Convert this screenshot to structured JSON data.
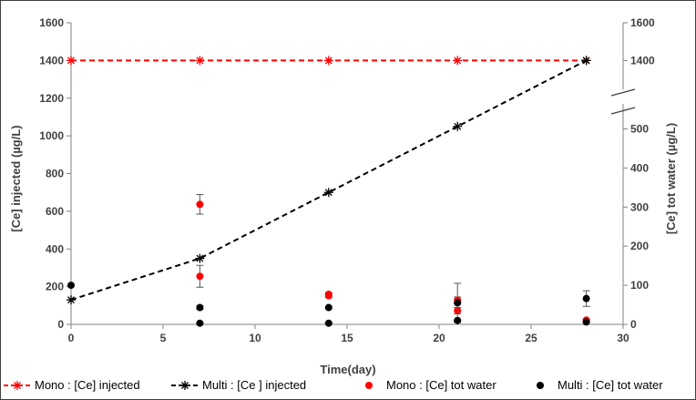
{
  "colors": {
    "mono": "#ff0000",
    "multi": "#000000",
    "axis": "#808080",
    "text": "#404040",
    "frame": "#404040"
  },
  "chart_data": {
    "type": "scatter",
    "xlabel": "Time(day)",
    "ylabel_left": "[Ce]  injected (µg/L)",
    "ylabel_right": "[Ce] tot water (µg/L)",
    "xlim": [
      0,
      30
    ],
    "x_ticks": [
      "0",
      "5",
      "10",
      "15",
      "20",
      "25",
      "30"
    ],
    "ylim_left": [
      0,
      1600
    ],
    "y_ticks_left": [
      "0",
      "200",
      "400",
      "600",
      "800",
      "1000",
      "1200",
      "1400",
      "1600"
    ],
    "ylim_right": [
      0,
      550
    ],
    "y_ticks_right": [
      "0",
      "100",
      "200",
      "300",
      "400",
      "500"
    ],
    "y_ticks_right_upper": [
      "1400",
      "1600"
    ],
    "right_axis_break": true,
    "grid": false,
    "legend_position": "bottom",
    "series": [
      {
        "name": "Mono : [Ce] injected",
        "axis": "left",
        "style": "dashed-line-star",
        "color": "#ff0000",
        "x": [
          0,
          7,
          14,
          21,
          28
        ],
        "y": [
          1400,
          1400,
          1400,
          1400,
          1400
        ]
      },
      {
        "name": "Multi : [Ce ] injected",
        "axis": "left",
        "style": "dashed-line-star",
        "color": "#000000",
        "x": [
          0,
          7,
          14,
          21,
          28
        ],
        "y": [
          130,
          350,
          700,
          1050,
          1400
        ]
      },
      {
        "name": "Mono : [Ce] tot water",
        "axis": "right",
        "style": "dot",
        "color": "#ff0000",
        "x": [
          7,
          7,
          14,
          14,
          21,
          21,
          28
        ],
        "y": [
          307,
          123,
          77,
          73,
          35,
          62,
          11
        ],
        "err": [
          25,
          28,
          4,
          4,
          8,
          8,
          3
        ]
      },
      {
        "name": "Multi : [Ce] tot water",
        "axis": "right",
        "style": "dot",
        "color": "#000000",
        "x": [
          0,
          7,
          7,
          14,
          14,
          21,
          21,
          28,
          28
        ],
        "y": [
          100,
          43,
          3,
          43,
          3,
          55,
          10,
          66,
          6
        ],
        "err": [
          0,
          5,
          1,
          3,
          1,
          50,
          2,
          20,
          1
        ]
      }
    ]
  }
}
